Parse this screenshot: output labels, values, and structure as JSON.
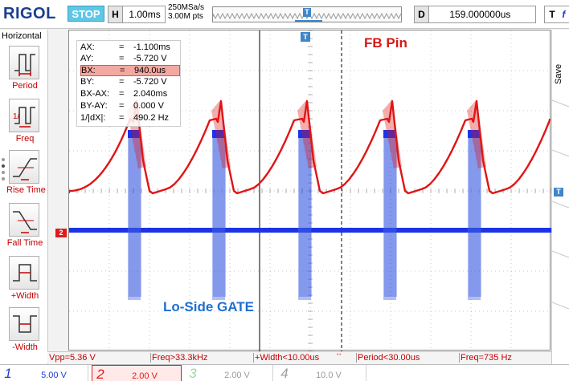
{
  "header": {
    "brand": "RIGOL",
    "run_state": "STOP",
    "timebase_key": "H",
    "timebase_value": "1.00ms",
    "sample_rate": "250MSa/s",
    "memory_depth": "3.00M pts",
    "trigger_marker": "T",
    "delay_key": "D",
    "delay_value": "159.000000us",
    "trigger_key": "T",
    "trigger_edge": "f"
  },
  "left_panel": {
    "title": "Horizontal",
    "items": [
      {
        "label": "Period",
        "icon": "period-icon"
      },
      {
        "label": "Freq",
        "icon": "frequency-icon"
      },
      {
        "label": "Rise Time",
        "icon": "rise-time-icon"
      },
      {
        "label": "Fall Time",
        "icon": "fall-time-icon"
      },
      {
        "label": "+Width",
        "icon": "positive-width-icon"
      },
      {
        "label": "-Width",
        "icon": "negative-width-icon"
      }
    ]
  },
  "right_panel": {
    "save_label": "Save",
    "trigger_level_marker": "T"
  },
  "cursor_readout": [
    {
      "label": "AX:",
      "eq": "=",
      "value": "-1.100ms"
    },
    {
      "label": "AY:",
      "eq": "=",
      "value": "-5.720 V"
    },
    {
      "label": "BX:",
      "eq": "=",
      "value": "940.0us"
    },
    {
      "label": "BY:",
      "eq": "=",
      "value": "-5.720 V"
    },
    {
      "label": "BX-AX:",
      "eq": "=",
      "value": "2.040ms"
    },
    {
      "label": "BY-AY:",
      "eq": "=",
      "value": "0.000 V"
    },
    {
      "label": "1/|dX|:",
      "eq": "=",
      "value": "490.2 Hz"
    }
  ],
  "annotations": {
    "ch1_note": "FB Pin",
    "ch2_note": "Lo-Side GATE",
    "ch2_marker": "2",
    "trigger_pos_marker": "T"
  },
  "measurements": [
    "Vpp=5.36 V",
    "Freq>33.3kHz",
    "+Width<10.00us",
    "Period<30.00us",
    "Freq=735 Hz"
  ],
  "channels": [
    {
      "num": "1",
      "scale": "5.00 V",
      "color": "#1f3fd6",
      "active": false
    },
    {
      "num": "2",
      "scale": "2.00 V",
      "color": "#e01a1a",
      "active": true
    },
    {
      "num": "3",
      "scale": "2.00 V",
      "color": "#9fd79f",
      "active": false
    },
    {
      "num": "4",
      "scale": "10.0 V",
      "color": "#a0a0a0",
      "active": false
    }
  ],
  "colors": {
    "trace_red": "#e01414",
    "trace_blue": "#1c34e6",
    "accent_cyan": "#5fc7e6",
    "measure_text": "#c40000"
  }
}
